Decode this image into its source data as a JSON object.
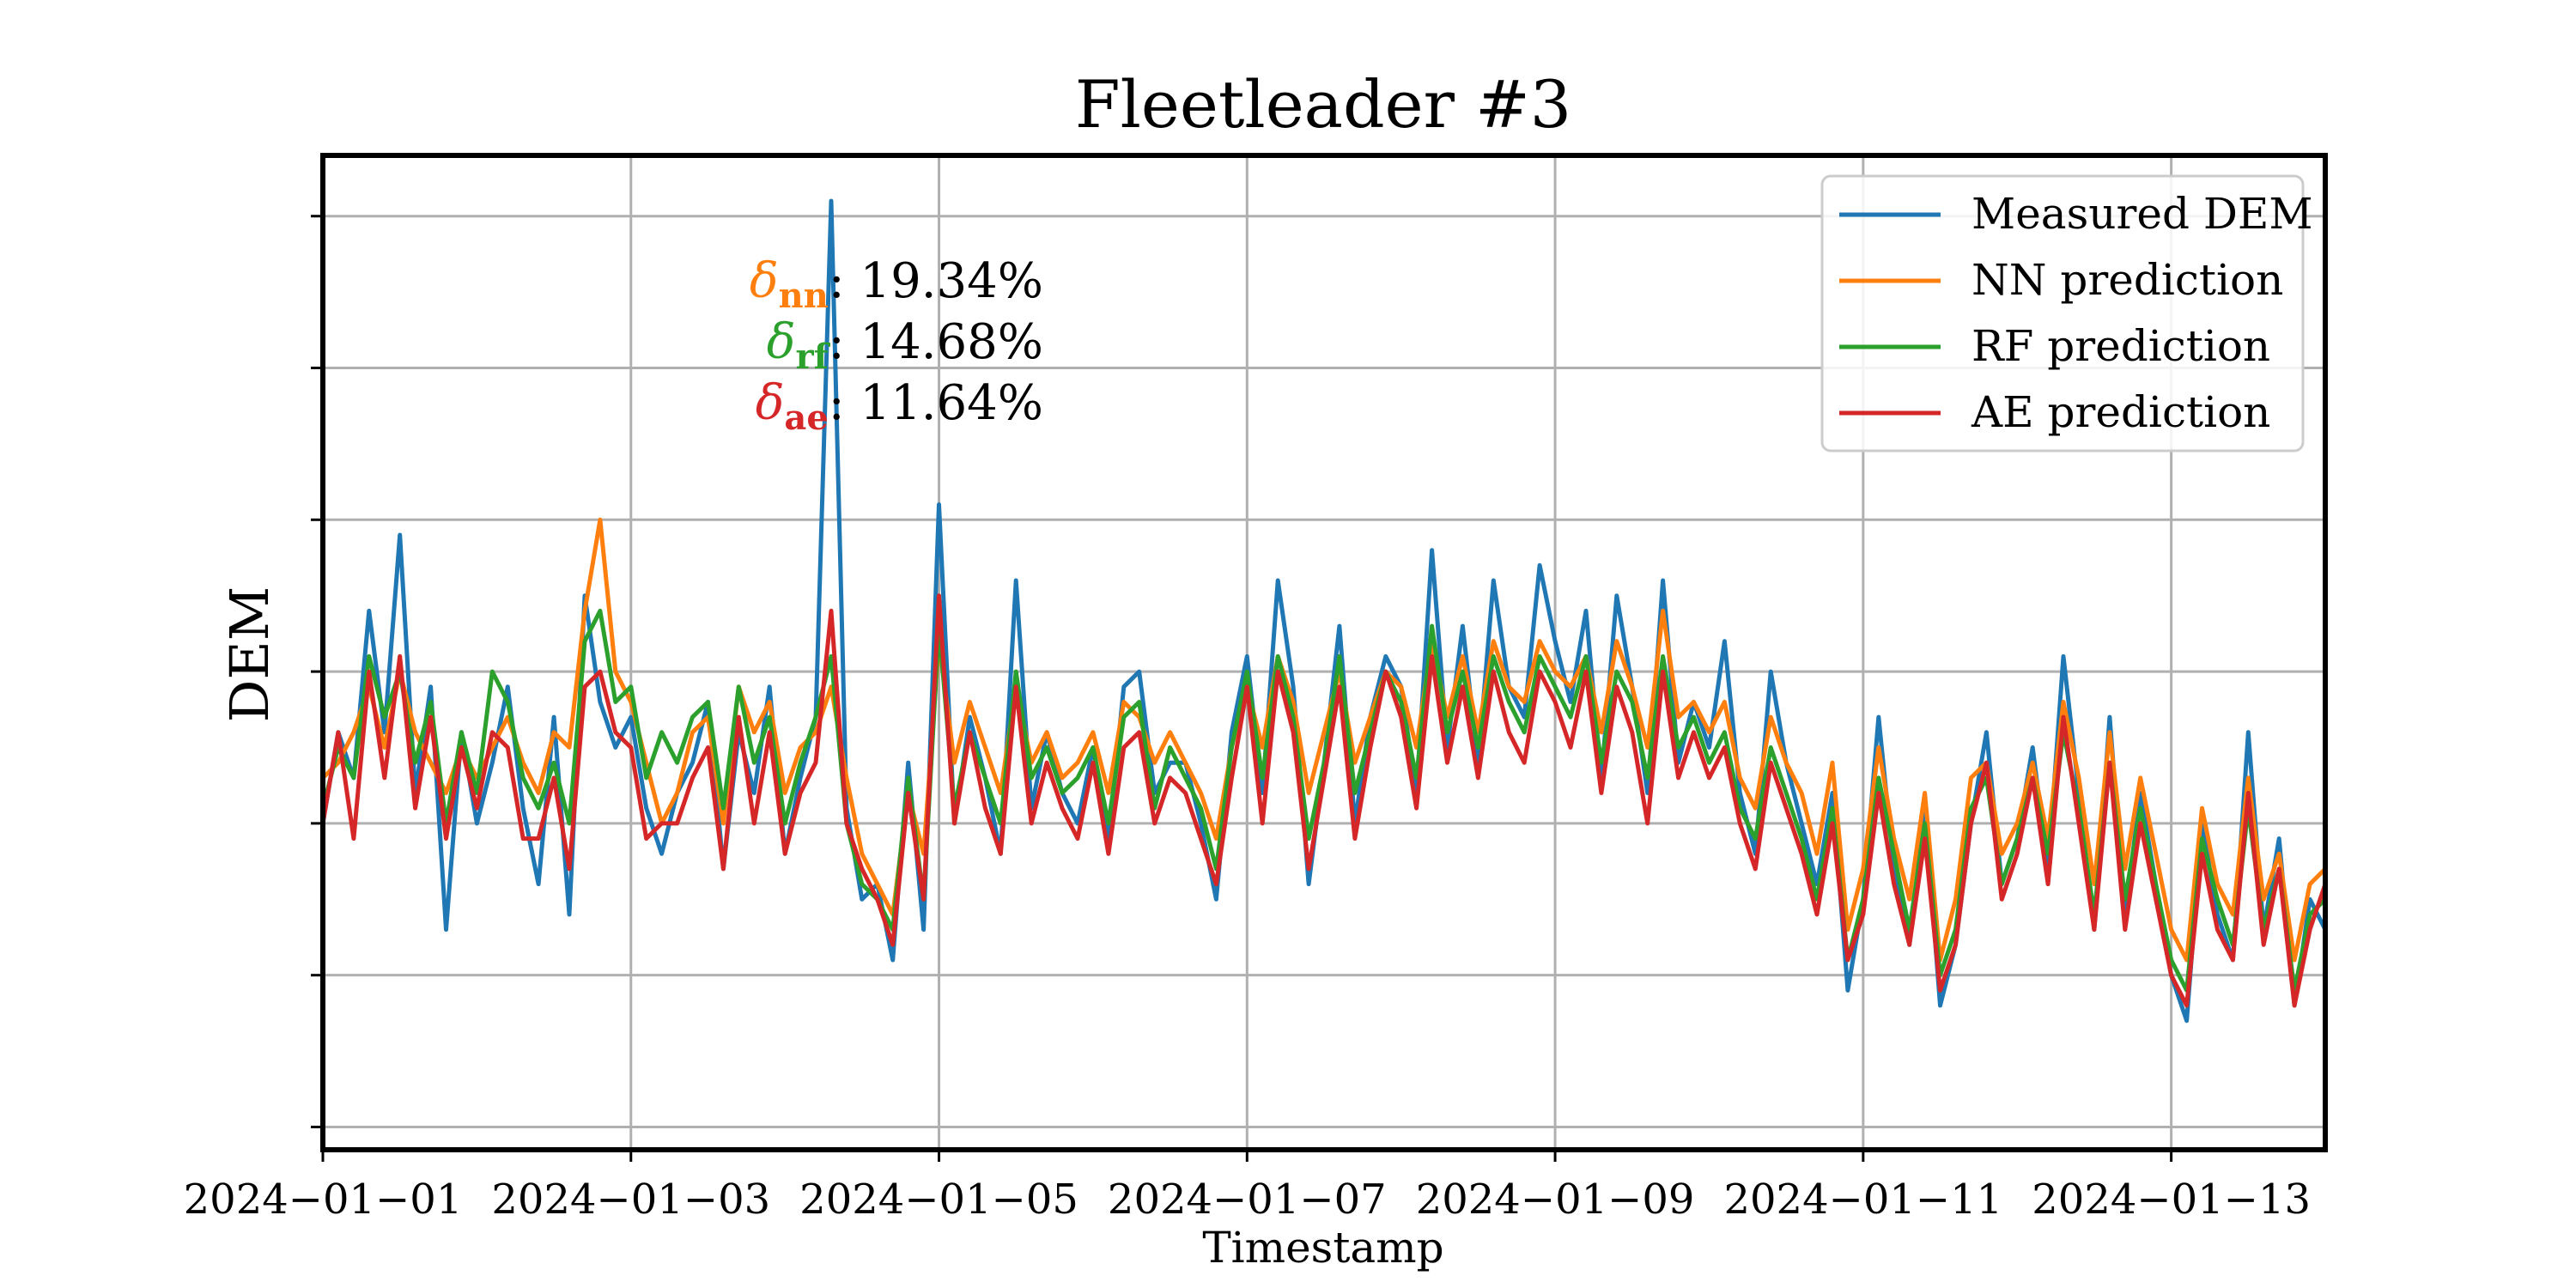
{
  "chart_data": {
    "type": "line",
    "title": "Fleetleader #3",
    "xlabel": "Timestamp",
    "ylabel": "DEM",
    "x_tick_labels": [
      "2024−01−01",
      "2024−01−03",
      "2024−01−05",
      "2024−01−07",
      "2024−01−09",
      "2024−01−11",
      "2024−01−13"
    ],
    "x_ticks_days": [
      0,
      2,
      4,
      6,
      8,
      10,
      12
    ],
    "xlim_days": [
      0,
      13.0
    ],
    "y_tick_count": 7,
    "ylim": [
      -0.15,
      6.4
    ],
    "grid": true,
    "legend_position": "top-right",
    "annotation": [
      {
        "symbol": "δ",
        "subscript": "nn",
        "value": ": 19.34%",
        "color": "#ff7f0e"
      },
      {
        "symbol": "δ",
        "subscript": "rf",
        "value": ": 14.68%",
        "color": "#2ca02c"
      },
      {
        "symbol": "δ",
        "subscript": "ae",
        "value": ": 11.64%",
        "color": "#d62728"
      }
    ],
    "series": [
      {
        "name": "Measured DEM",
        "color": "#1f77b4",
        "x": [
          0.0,
          0.1,
          0.2,
          0.3,
          0.4,
          0.5,
          0.6,
          0.7,
          0.8,
          0.9,
          1.0,
          1.1,
          1.2,
          1.3,
          1.4,
          1.5,
          1.6,
          1.7,
          1.8,
          1.9,
          2.0,
          2.1,
          2.2,
          2.3,
          2.4,
          2.5,
          2.6,
          2.7,
          2.8,
          2.9,
          3.0,
          3.1,
          3.2,
          3.3,
          3.4,
          3.5,
          3.6,
          3.7,
          3.8,
          3.9,
          4.0,
          4.1,
          4.2,
          4.3,
          4.4,
          4.5,
          4.6,
          4.7,
          4.8,
          4.9,
          5.0,
          5.1,
          5.2,
          5.3,
          5.4,
          5.5,
          5.6,
          5.7,
          5.8,
          5.9,
          6.0,
          6.1,
          6.2,
          6.3,
          6.4,
          6.5,
          6.6,
          6.7,
          6.8,
          6.9,
          7.0,
          7.1,
          7.2,
          7.3,
          7.4,
          7.5,
          7.6,
          7.7,
          7.8,
          7.9,
          8.0,
          8.1,
          8.2,
          8.3,
          8.4,
          8.5,
          8.6,
          8.7,
          8.8,
          8.9,
          9.0,
          9.1,
          9.2,
          9.3,
          9.4,
          9.5,
          9.6,
          9.7,
          9.8,
          9.9,
          10.0,
          10.1,
          10.2,
          10.3,
          10.4,
          10.5,
          10.6,
          10.7,
          10.8,
          10.9,
          11.0,
          11.1,
          11.2,
          11.3,
          11.4,
          11.5,
          11.6,
          11.7,
          11.8,
          11.9,
          12.0,
          12.1,
          12.2,
          12.3,
          12.4,
          12.5,
          12.6,
          12.7,
          12.8,
          12.9,
          13.0
        ],
        "values": [
          2.0,
          2.6,
          2.3,
          3.4,
          2.6,
          3.9,
          2.2,
          2.9,
          1.3,
          2.6,
          2.0,
          2.4,
          2.9,
          2.1,
          1.6,
          2.7,
          1.4,
          3.5,
          2.8,
          2.5,
          2.7,
          2.1,
          1.8,
          2.2,
          2.4,
          2.8,
          1.7,
          2.6,
          2.2,
          2.9,
          1.8,
          2.3,
          2.7,
          6.1,
          2.1,
          1.5,
          1.6,
          1.1,
          2.4,
          1.3,
          4.1,
          2.0,
          2.7,
          2.3,
          1.8,
          3.6,
          2.1,
          2.6,
          2.2,
          2.0,
          2.5,
          1.9,
          2.9,
          3.0,
          2.2,
          2.4,
          2.4,
          2.0,
          1.5,
          2.6,
          3.1,
          2.2,
          3.6,
          2.9,
          1.6,
          2.4,
          3.3,
          2.0,
          2.7,
          3.1,
          2.9,
          2.2,
          3.8,
          2.5,
          3.3,
          2.4,
          3.6,
          2.9,
          2.7,
          3.7,
          3.2,
          2.8,
          3.4,
          2.3,
          3.5,
          2.9,
          2.2,
          3.6,
          2.4,
          2.8,
          2.5,
          3.2,
          2.2,
          1.8,
          3.0,
          2.4,
          2.0,
          1.6,
          2.2,
          0.9,
          1.5,
          2.7,
          1.7,
          1.2,
          2.1,
          0.8,
          1.2,
          2.0,
          2.6,
          1.6,
          1.9,
          2.5,
          1.7,
          3.1,
          2.2,
          1.3,
          2.7,
          1.4,
          2.2,
          1.6,
          1.0,
          0.7,
          2.0,
          1.4,
          1.1,
          2.6,
          1.3,
          1.9,
          0.8,
          1.5,
          1.3
        ]
      },
      {
        "name": "NN prediction",
        "color": "#ff7f0e",
        "x": [
          0.0,
          0.1,
          0.2,
          0.3,
          0.4,
          0.5,
          0.6,
          0.7,
          0.8,
          0.9,
          1.0,
          1.1,
          1.2,
          1.3,
          1.4,
          1.5,
          1.6,
          1.7,
          1.8,
          1.9,
          2.0,
          2.1,
          2.2,
          2.3,
          2.4,
          2.5,
          2.6,
          2.7,
          2.8,
          2.9,
          3.0,
          3.1,
          3.2,
          3.3,
          3.4,
          3.5,
          3.6,
          3.7,
          3.8,
          3.9,
          4.0,
          4.1,
          4.2,
          4.3,
          4.4,
          4.5,
          4.6,
          4.7,
          4.8,
          4.9,
          5.0,
          5.1,
          5.2,
          5.3,
          5.4,
          5.5,
          5.6,
          5.7,
          5.8,
          5.9,
          6.0,
          6.1,
          6.2,
          6.3,
          6.4,
          6.5,
          6.6,
          6.7,
          6.8,
          6.9,
          7.0,
          7.1,
          7.2,
          7.3,
          7.4,
          7.5,
          7.6,
          7.7,
          7.8,
          7.9,
          8.0,
          8.1,
          8.2,
          8.3,
          8.4,
          8.5,
          8.6,
          8.7,
          8.8,
          8.9,
          9.0,
          9.1,
          9.2,
          9.3,
          9.4,
          9.5,
          9.6,
          9.7,
          9.8,
          9.9,
          10.0,
          10.1,
          10.2,
          10.3,
          10.4,
          10.5,
          10.6,
          10.7,
          10.8,
          10.9,
          11.0,
          11.1,
          11.2,
          11.3,
          11.4,
          11.5,
          11.6,
          11.7,
          11.8,
          11.9,
          12.0,
          12.1,
          12.2,
          12.3,
          12.4,
          12.5,
          12.6,
          12.7,
          12.8,
          12.9,
          13.0
        ],
        "values": [
          2.3,
          2.4,
          2.6,
          2.9,
          2.5,
          3.0,
          2.6,
          2.4,
          2.2,
          2.5,
          2.3,
          2.5,
          2.7,
          2.4,
          2.2,
          2.6,
          2.5,
          3.4,
          4.0,
          3.0,
          2.8,
          2.4,
          2.0,
          2.2,
          2.6,
          2.7,
          2.0,
          2.9,
          2.6,
          2.8,
          2.2,
          2.5,
          2.6,
          2.9,
          2.3,
          1.8,
          1.6,
          1.4,
          2.2,
          1.8,
          3.2,
          2.4,
          2.8,
          2.5,
          2.2,
          2.9,
          2.4,
          2.6,
          2.3,
          2.4,
          2.6,
          2.2,
          2.8,
          2.7,
          2.4,
          2.6,
          2.4,
          2.2,
          1.9,
          2.5,
          2.9,
          2.5,
          3.1,
          2.8,
          2.2,
          2.6,
          3.0,
          2.4,
          2.7,
          3.0,
          2.9,
          2.5,
          3.2,
          2.7,
          3.1,
          2.6,
          3.2,
          2.9,
          2.8,
          3.2,
          3.0,
          2.9,
          3.1,
          2.6,
          3.2,
          2.9,
          2.5,
          3.4,
          2.7,
          2.8,
          2.6,
          2.8,
          2.3,
          2.1,
          2.7,
          2.4,
          2.2,
          1.8,
          2.4,
          1.3,
          1.7,
          2.5,
          1.9,
          1.5,
          2.2,
          1.1,
          1.5,
          2.3,
          2.4,
          1.8,
          2.0,
          2.4,
          1.9,
          2.8,
          2.3,
          1.6,
          2.6,
          1.7,
          2.3,
          1.8,
          1.3,
          1.1,
          2.1,
          1.6,
          1.4,
          2.3,
          1.5,
          1.8,
          1.1,
          1.6,
          1.7
        ]
      },
      {
        "name": "RF prediction",
        "color": "#2ca02c",
        "x": [
          0.0,
          0.1,
          0.2,
          0.3,
          0.4,
          0.5,
          0.6,
          0.7,
          0.8,
          0.9,
          1.0,
          1.1,
          1.2,
          1.3,
          1.4,
          1.5,
          1.6,
          1.7,
          1.8,
          1.9,
          2.0,
          2.1,
          2.2,
          2.3,
          2.4,
          2.5,
          2.6,
          2.7,
          2.8,
          2.9,
          3.0,
          3.1,
          3.2,
          3.3,
          3.4,
          3.5,
          3.6,
          3.7,
          3.8,
          3.9,
          4.0,
          4.1,
          4.2,
          4.3,
          4.4,
          4.5,
          4.6,
          4.7,
          4.8,
          4.9,
          5.0,
          5.1,
          5.2,
          5.3,
          5.4,
          5.5,
          5.6,
          5.7,
          5.8,
          5.9,
          6.0,
          6.1,
          6.2,
          6.3,
          6.4,
          6.5,
          6.6,
          6.7,
          6.8,
          6.9,
          7.0,
          7.1,
          7.2,
          7.3,
          7.4,
          7.5,
          7.6,
          7.7,
          7.8,
          7.9,
          8.0,
          8.1,
          8.2,
          8.3,
          8.4,
          8.5,
          8.6,
          8.7,
          8.8,
          8.9,
          9.0,
          9.1,
          9.2,
          9.3,
          9.4,
          9.5,
          9.6,
          9.7,
          9.8,
          9.9,
          10.0,
          10.1,
          10.2,
          10.3,
          10.4,
          10.5,
          10.6,
          10.7,
          10.8,
          10.9,
          11.0,
          11.1,
          11.2,
          11.3,
          11.4,
          11.5,
          11.6,
          11.7,
          11.8,
          11.9,
          12.0,
          12.1,
          12.2,
          12.3,
          12.4,
          12.5,
          12.6,
          12.7,
          12.8,
          12.9,
          13.0
        ],
        "values": [
          2.1,
          2.5,
          2.3,
          3.1,
          2.7,
          3.0,
          2.4,
          2.8,
          2.0,
          2.6,
          2.2,
          3.0,
          2.8,
          2.3,
          2.1,
          2.4,
          2.0,
          3.2,
          3.4,
          2.8,
          2.9,
          2.3,
          2.6,
          2.4,
          2.7,
          2.8,
          2.1,
          2.9,
          2.4,
          2.7,
          2.0,
          2.4,
          2.7,
          3.1,
          2.0,
          1.6,
          1.5,
          1.3,
          2.3,
          1.5,
          3.3,
          2.1,
          2.6,
          2.3,
          2.0,
          3.0,
          2.3,
          2.5,
          2.2,
          2.3,
          2.5,
          2.0,
          2.7,
          2.8,
          2.1,
          2.5,
          2.3,
          2.1,
          1.7,
          2.5,
          3.0,
          2.3,
          3.1,
          2.7,
          1.9,
          2.4,
          3.1,
          2.2,
          2.6,
          3.0,
          2.8,
          2.3,
          3.3,
          2.6,
          3.0,
          2.5,
          3.1,
          2.8,
          2.6,
          3.1,
          2.9,
          2.7,
          3.1,
          2.4,
          3.0,
          2.8,
          2.3,
          3.1,
          2.5,
          2.7,
          2.4,
          2.6,
          2.1,
          1.9,
          2.5,
          2.2,
          1.9,
          1.5,
          2.1,
          1.1,
          1.5,
          2.3,
          1.8,
          1.3,
          2.0,
          1.0,
          1.3,
          2.1,
          2.3,
          1.6,
          1.9,
          2.3,
          1.8,
          2.6,
          2.1,
          1.4,
          2.4,
          1.5,
          2.1,
          1.6,
          1.1,
          0.9,
          1.9,
          1.5,
          1.2,
          2.1,
          1.3,
          1.7,
          0.9,
          1.4,
          1.5
        ]
      },
      {
        "name": "AE prediction",
        "color": "#d62728",
        "x": [
          0.0,
          0.1,
          0.2,
          0.3,
          0.4,
          0.5,
          0.6,
          0.7,
          0.8,
          0.9,
          1.0,
          1.1,
          1.2,
          1.3,
          1.4,
          1.5,
          1.6,
          1.7,
          1.8,
          1.9,
          2.0,
          2.1,
          2.2,
          2.3,
          2.4,
          2.5,
          2.6,
          2.7,
          2.8,
          2.9,
          3.0,
          3.1,
          3.2,
          3.3,
          3.4,
          3.5,
          3.6,
          3.7,
          3.8,
          3.9,
          4.0,
          4.1,
          4.2,
          4.3,
          4.4,
          4.5,
          4.6,
          4.7,
          4.8,
          4.9,
          5.0,
          5.1,
          5.2,
          5.3,
          5.4,
          5.5,
          5.6,
          5.7,
          5.8,
          5.9,
          6.0,
          6.1,
          6.2,
          6.3,
          6.4,
          6.5,
          6.6,
          6.7,
          6.8,
          6.9,
          7.0,
          7.1,
          7.2,
          7.3,
          7.4,
          7.5,
          7.6,
          7.7,
          7.8,
          7.9,
          8.0,
          8.1,
          8.2,
          8.3,
          8.4,
          8.5,
          8.6,
          8.7,
          8.8,
          8.9,
          9.0,
          9.1,
          9.2,
          9.3,
          9.4,
          9.5,
          9.6,
          9.7,
          9.8,
          9.9,
          10.0,
          10.1,
          10.2,
          10.3,
          10.4,
          10.5,
          10.6,
          10.7,
          10.8,
          10.9,
          11.0,
          11.1,
          11.2,
          11.3,
          11.4,
          11.5,
          11.6,
          11.7,
          11.8,
          11.9,
          12.0,
          12.1,
          12.2,
          12.3,
          12.4,
          12.5,
          12.6,
          12.7,
          12.8,
          12.9,
          13.0
        ],
        "values": [
          2.0,
          2.6,
          1.9,
          3.0,
          2.3,
          3.1,
          2.1,
          2.7,
          1.9,
          2.5,
          2.1,
          2.6,
          2.5,
          1.9,
          1.9,
          2.3,
          1.7,
          2.9,
          3.0,
          2.6,
          2.5,
          1.9,
          2.0,
          2.0,
          2.3,
          2.5,
          1.7,
          2.7,
          2.0,
          2.6,
          1.8,
          2.2,
          2.4,
          3.4,
          2.0,
          1.7,
          1.5,
          1.2,
          2.2,
          1.5,
          3.5,
          2.0,
          2.6,
          2.1,
          1.8,
          2.9,
          2.0,
          2.4,
          2.1,
          1.9,
          2.4,
          1.8,
          2.5,
          2.6,
          2.0,
          2.3,
          2.2,
          1.9,
          1.6,
          2.3,
          2.9,
          2.0,
          3.0,
          2.6,
          1.7,
          2.3,
          2.9,
          1.9,
          2.5,
          3.0,
          2.7,
          2.1,
          3.1,
          2.4,
          2.9,
          2.3,
          3.0,
          2.6,
          2.4,
          3.0,
          2.8,
          2.5,
          3.0,
          2.2,
          2.9,
          2.6,
          2.0,
          3.0,
          2.3,
          2.6,
          2.3,
          2.5,
          2.0,
          1.7,
          2.4,
          2.1,
          1.8,
          1.4,
          2.0,
          1.1,
          1.4,
          2.2,
          1.6,
          1.2,
          1.9,
          0.9,
          1.2,
          2.0,
          2.4,
          1.5,
          1.8,
          2.3,
          1.6,
          2.7,
          2.0,
          1.3,
          2.4,
          1.3,
          2.0,
          1.5,
          1.0,
          0.8,
          1.8,
          1.3,
          1.1,
          2.2,
          1.2,
          1.7,
          0.8,
          1.3,
          1.6
        ]
      }
    ]
  }
}
